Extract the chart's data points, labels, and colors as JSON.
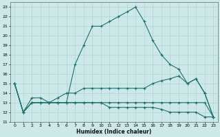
{
  "xlabel": "Humidex (Indice chaleur)",
  "bg_color": "#cce8e8",
  "grid_color": "#aacccc",
  "line_color": "#1a7070",
  "xlim": [
    -0.5,
    23.5
  ],
  "ylim": [
    11,
    23.5
  ],
  "xticks": [
    0,
    1,
    2,
    3,
    4,
    5,
    6,
    7,
    8,
    9,
    10,
    11,
    12,
    13,
    14,
    15,
    16,
    17,
    18,
    19,
    20,
    21,
    22,
    23
  ],
  "yticks": [
    11,
    12,
    13,
    14,
    15,
    16,
    17,
    18,
    19,
    20,
    21,
    22,
    23
  ],
  "lines": [
    [
      15,
      12,
      13,
      13,
      13,
      13,
      13,
      17,
      19,
      21,
      21,
      21.5,
      22,
      22.5,
      23,
      21.5,
      19.5,
      18,
      17,
      16.5,
      15,
      15.5,
      14,
      11.5
    ],
    [
      15,
      12,
      13,
      13,
      13,
      13.5,
      14,
      14,
      14.5,
      14.5,
      14.5,
      14.5,
      14.5,
      14.5,
      14.5,
      14.5,
      15,
      15.3,
      15.5,
      15.8,
      15,
      15.5,
      14,
      11.5
    ],
    [
      15,
      12,
      13,
      13,
      13,
      13,
      13,
      13,
      13,
      13,
      13,
      12.5,
      12.5,
      12.5,
      12.5,
      12.5,
      12.5,
      12.3,
      12,
      12,
      12,
      12,
      11.5,
      11.5
    ],
    [
      15,
      12,
      13.5,
      13.5,
      13,
      13,
      13,
      13,
      13,
      13,
      13,
      13,
      13,
      13,
      13,
      13,
      13,
      13,
      13,
      13,
      13,
      13,
      13,
      11.5
    ]
  ]
}
